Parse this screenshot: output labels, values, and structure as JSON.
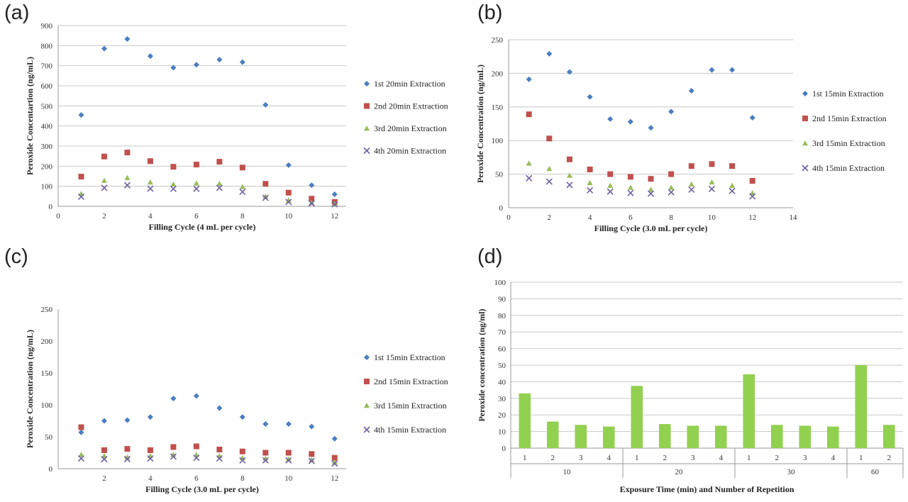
{
  "panels": [
    {
      "label": "(a)"
    },
    {
      "label": "(b)"
    },
    {
      "label": "(c)"
    },
    {
      "label": "(d)"
    }
  ],
  "colors": {
    "series1": "#4a7ebf",
    "series2": "#c0504d",
    "series3": "#9bbb59",
    "series4": "#7060a0",
    "bar": "#92d050",
    "grid": "#c8c8c8"
  },
  "chart_data": [
    {
      "type": "scatter",
      "panel": "(a)",
      "xlabel": "Filling Cycle (4 mL per cycle)",
      "ylabel": "Peroxide Concentartion (ng/mL)",
      "xlim": [
        0,
        12.5
      ],
      "ylim": [
        0,
        900
      ],
      "xticks": [
        0,
        2,
        4,
        6,
        8,
        10,
        12
      ],
      "yticks": [
        0,
        100,
        200,
        300,
        400,
        500,
        600,
        700,
        800,
        900
      ],
      "grid": true,
      "legend_position": "right",
      "x": [
        1,
        2,
        3,
        4,
        5,
        6,
        7,
        8,
        9,
        10,
        11,
        12
      ],
      "series": [
        {
          "name": "1st 20min Extraction",
          "marker": "diamond",
          "values": [
            455,
            785,
            833,
            748,
            690,
            705,
            730,
            718,
            505,
            205,
            105,
            60
          ]
        },
        {
          "name": "2nd 20min  Extraction",
          "marker": "square",
          "values": [
            148,
            248,
            268,
            225,
            197,
            208,
            222,
            193,
            112,
            68,
            38,
            22
          ]
        },
        {
          "name": "3rd 20min  Extraction",
          "marker": "triangle",
          "values": [
            62,
            128,
            142,
            120,
            110,
            115,
            113,
            97,
            50,
            30,
            18,
            12
          ]
        },
        {
          "name": "4th 20min  Extraction",
          "marker": "x",
          "values": [
            48,
            92,
            105,
            88,
            87,
            87,
            92,
            72,
            42,
            22,
            15,
            10
          ]
        }
      ]
    },
    {
      "type": "scatter",
      "panel": "(b)",
      "xlabel": "Filling Cycle (3.0 mL per cycle)",
      "ylabel": "Peroxide Concentration (ng/mL)",
      "xlim": [
        0,
        14
      ],
      "ylim": [
        0,
        250
      ],
      "xticks": [
        0,
        2,
        4,
        6,
        8,
        10,
        12,
        14
      ],
      "yticks": [
        0,
        50,
        100,
        150,
        200,
        250
      ],
      "grid": true,
      "legend_position": "right",
      "x": [
        1,
        2,
        3,
        4,
        5,
        6,
        7,
        8,
        9,
        10,
        11,
        12
      ],
      "series": [
        {
          "name": "1st 15min Extraction",
          "marker": "diamond",
          "values": [
            191,
            229,
            202,
            165,
            132,
            128,
            119,
            143,
            174,
            205,
            205,
            134
          ]
        },
        {
          "name": "2nd 15min  Extraction",
          "marker": "square",
          "values": [
            139,
            103,
            72,
            57,
            50,
            46,
            43,
            50,
            62,
            65,
            62,
            40
          ]
        },
        {
          "name": "3rd 15min Extraction",
          "marker": "triangle",
          "values": [
            66,
            58,
            48,
            37,
            33,
            30,
            27,
            30,
            35,
            38,
            33,
            22
          ]
        },
        {
          "name": "4th 15min  Extraction",
          "marker": "x",
          "values": [
            44,
            39,
            34,
            26,
            24,
            22,
            21,
            23,
            27,
            28,
            25,
            17
          ]
        }
      ]
    },
    {
      "type": "scatter",
      "panel": "(c)",
      "xlabel": "Filling Cycle (3.0 mL per cycle)",
      "ylabel": "Peroxide Concentration (ng/mL)",
      "xlim": [
        0,
        12.5
      ],
      "ylim": [
        0,
        250
      ],
      "xticks": [
        2,
        4,
        6,
        8,
        10,
        12
      ],
      "yticks": [
        0,
        50,
        100,
        150,
        200,
        250
      ],
      "grid": false,
      "legend_position": "right",
      "x": [
        1,
        2,
        3,
        4,
        5,
        6,
        7,
        8,
        9,
        10,
        11,
        12
      ],
      "series": [
        {
          "name": "1st 15min Extraction",
          "marker": "diamond",
          "values": [
            57,
            75,
            76,
            81,
            110,
            114,
            95,
            81,
            70,
            70,
            66,
            47
          ]
        },
        {
          "name": "2nd 15min Extraction",
          "marker": "square",
          "values": [
            65,
            29,
            31,
            29,
            34,
            35,
            30,
            27,
            25,
            25,
            23,
            17
          ]
        },
        {
          "name": "3rd 15min Extraction",
          "marker": "triangle",
          "values": [
            22,
            20,
            18,
            20,
            22,
            22,
            20,
            17,
            16,
            15,
            14,
            10
          ]
        },
        {
          "name": "4th 15min Extraction",
          "marker": "x",
          "values": [
            16,
            15,
            15,
            16,
            19,
            17,
            16,
            13,
            13,
            13,
            12,
            8
          ]
        }
      ]
    },
    {
      "type": "bar",
      "panel": "(d)",
      "xlabel": "Exposure Time (min) and Number of Repetition",
      "ylabel": "Peroxide concentration (ng/ml)",
      "ylim": [
        0,
        100
      ],
      "yticks": [
        0,
        10,
        20,
        30,
        40,
        50,
        60,
        70,
        80,
        90,
        100
      ],
      "grid": true,
      "groups": [
        {
          "name": "10",
          "categories": [
            "1",
            "2",
            "3",
            "4"
          ],
          "values": [
            33,
            16,
            14,
            13
          ]
        },
        {
          "name": "20",
          "categories": [
            "1",
            "2",
            "3",
            "4"
          ],
          "values": [
            37.5,
            14.5,
            13.5,
            13.5
          ]
        },
        {
          "name": "30",
          "categories": [
            "1",
            "2",
            "3",
            "4"
          ],
          "values": [
            44.5,
            14,
            13.5,
            13
          ]
        },
        {
          "name": "60",
          "categories": [
            "1",
            "2"
          ],
          "values": [
            50,
            14
          ]
        }
      ]
    }
  ]
}
